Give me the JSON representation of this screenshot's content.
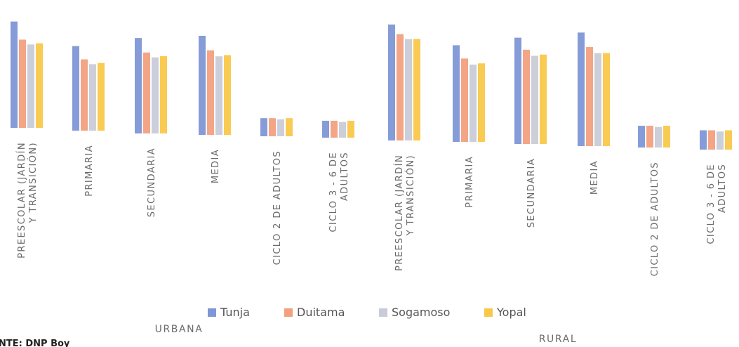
{
  "chart_data": {
    "type": "bar",
    "title": "",
    "xlabel": "",
    "ylabel": "",
    "ylim": [
      0,
      100
    ],
    "grid": false,
    "legend_position": "bottom",
    "groups": [
      {
        "label": "URBANA",
        "categories": [
          "PREESCOLAR (JARDÍN Y TRANSICIÓN)",
          "PRIMARIA",
          "SECUNDARIA",
          "MEDIA",
          "CICLO 2 DE ADULTOS",
          "CICLO 3 - 6 DE ADULTOS"
        ]
      },
      {
        "label": "RURAL",
        "categories": [
          "PREESCOLAR (JARDÍN Y TRANSICIÓN)",
          "PRIMARIA",
          "SECUNDARIA",
          "MEDIA",
          "CICLO 2 DE ADULTOS",
          "CICLO 3 - 6 DE ADULTOS"
        ]
      }
    ],
    "category_label_lines": [
      [
        "PREESCOLAR (JARDÍN",
        "Y TRANSICIÓN)"
      ],
      [
        "PRIMARIA"
      ],
      [
        "SECUNDARIA"
      ],
      [
        "MEDIA"
      ],
      [
        "CICLO 2 DE ADULTOS"
      ],
      [
        "CICLO 3 - 6 DE",
        "ADULTOS"
      ],
      [
        "PREESCOLAR (JARDÍN",
        "Y TRANSICIÓN)"
      ],
      [
        "PRIMARIA"
      ],
      [
        "SECUNDARIA"
      ],
      [
        "MEDIA"
      ],
      [
        "CICLO 2 DE ADULTOS"
      ],
      [
        "CICLO 3 - 6 DE",
        "ADULTOS"
      ]
    ],
    "series": [
      {
        "name": "Tunja",
        "color": "#7f97d6",
        "values": [
          88,
          70,
          79,
          82,
          15,
          14,
          96,
          80,
          88,
          94,
          18,
          16
        ]
      },
      {
        "name": "Duitama",
        "color": "#f3a07e",
        "values": [
          73,
          59,
          67,
          70,
          15,
          14,
          88,
          69,
          78,
          82,
          18,
          16
        ]
      },
      {
        "name": "Sogamoso",
        "color": "#c9ccd8",
        "values": [
          69,
          55,
          63,
          65,
          14,
          13,
          84,
          64,
          73,
          77,
          17,
          15
        ]
      },
      {
        "name": "Yopal",
        "color": "#f9c84a",
        "values": [
          70,
          56,
          64,
          66,
          15,
          14,
          84,
          65,
          74,
          77,
          18,
          16
        ]
      }
    ]
  },
  "source_text": "NTE: DNP Boy",
  "legend": {
    "items": [
      {
        "label": "Tunja",
        "color": "#7f97d6"
      },
      {
        "label": "Duitama",
        "color": "#f3a07e"
      },
      {
        "label": "Sogamoso",
        "color": "#c9ccd8"
      },
      {
        "label": "Yopal",
        "color": "#f9c84a"
      }
    ]
  }
}
